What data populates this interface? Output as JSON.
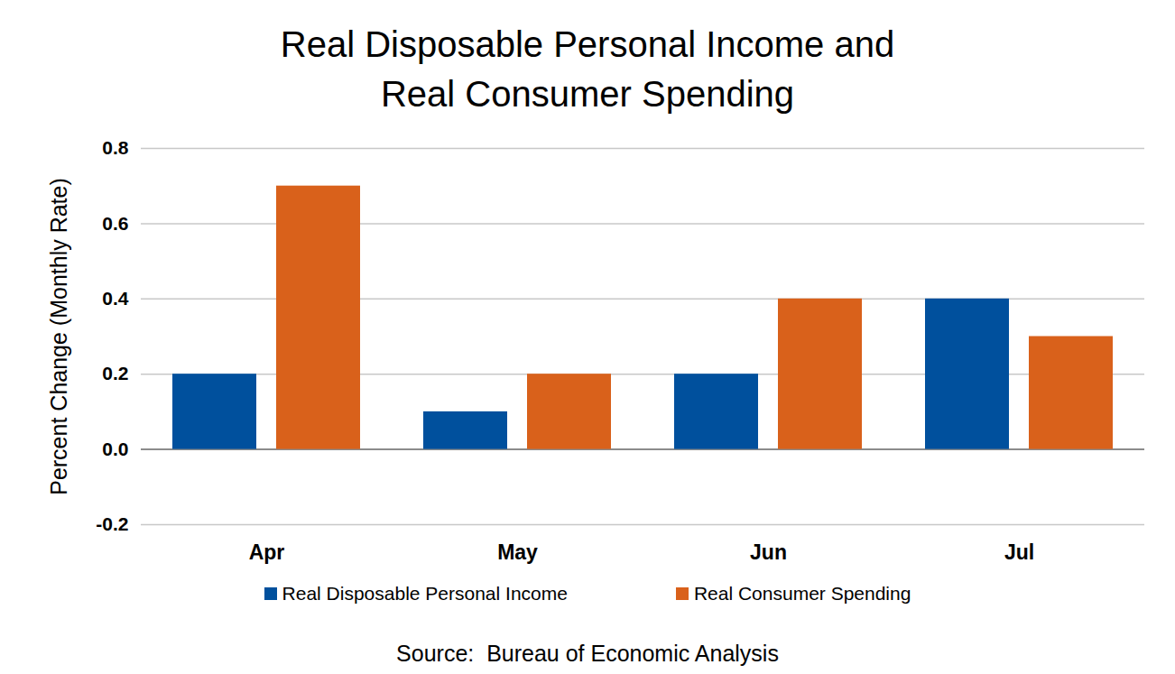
{
  "chart_data": {
    "type": "bar",
    "title": "Real Disposable Personal Income and Real Consumer Spending",
    "y_label": "Percent Change (Monthly Rate)",
    "source": "Source:  Bureau of Economic Analysis",
    "categories": [
      "Apr",
      "May",
      "Jun",
      "Jul"
    ],
    "series": [
      {
        "name": "Real Disposable Personal Income",
        "color": "#00509d",
        "values": [
          0.2,
          0.1,
          0.2,
          0.4
        ]
      },
      {
        "name": "Real Consumer Spending",
        "color": "#d9611b",
        "values": [
          0.7,
          0.2,
          0.4,
          0.3
        ]
      }
    ],
    "ylim": [
      -0.2,
      0.8
    ],
    "yticks": [
      -0.2,
      {
        "value": 0,
        "label": "0.0"
      },
      0.2,
      0.4,
      0.6,
      0.8
    ],
    "grid": true,
    "legend": "bottom"
  }
}
